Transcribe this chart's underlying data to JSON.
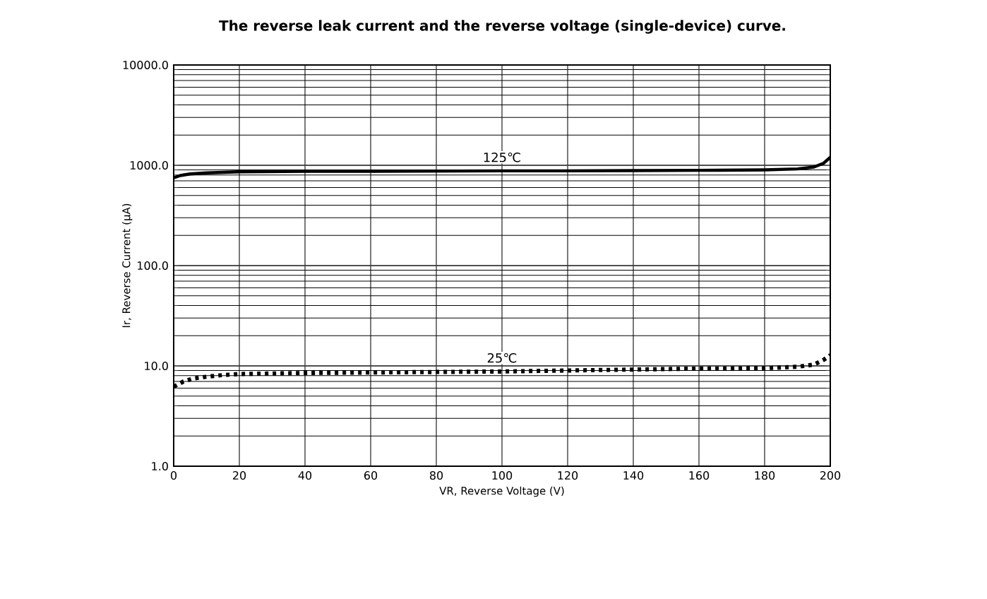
{
  "chart_data": {
    "type": "line",
    "title": "The reverse leak current and the reverse voltage (single-device) curve.",
    "xlabel": "VR, Reverse Voltage (V)",
    "ylabel": "Ir, Reverse Current (µA)",
    "log": "y",
    "grid": true,
    "marker": "none",
    "xlim": [
      0,
      200
    ],
    "xticks": [
      0,
      20,
      40,
      60,
      80,
      100,
      120,
      140,
      160,
      180,
      200
    ],
    "ylim": [
      1,
      10000
    ],
    "yticks": [
      {
        "value": 1,
        "label": "1.0"
      },
      {
        "value": 10,
        "label": "10.0"
      },
      {
        "value": 100,
        "label": "100.0"
      },
      {
        "value": 1000,
        "label": "1000.0"
      },
      {
        "value": 10000,
        "label": "10000.0"
      }
    ],
    "series": [
      {
        "name": "125℃",
        "color": "#000000",
        "line_style": "solid",
        "x": [
          0,
          2,
          5,
          10,
          20,
          40,
          60,
          80,
          100,
          120,
          140,
          160,
          180,
          190,
          195,
          198,
          200
        ],
        "values": [
          750,
          790,
          820,
          840,
          860,
          870,
          870,
          875,
          880,
          880,
          885,
          890,
          900,
          920,
          960,
          1050,
          1200
        ]
      },
      {
        "name": "25℃",
        "color": "#000000",
        "line_style": "dotted",
        "x": [
          0,
          3,
          6,
          10,
          15,
          20,
          40,
          60,
          80,
          100,
          120,
          140,
          160,
          180,
          190,
          195,
          198,
          200
        ],
        "values": [
          6.2,
          7.0,
          7.5,
          7.8,
          8.1,
          8.3,
          8.5,
          8.6,
          8.7,
          8.8,
          9.0,
          9.2,
          9.4,
          9.5,
          9.8,
          10.3,
          11.5,
          12.8
        ]
      }
    ]
  }
}
